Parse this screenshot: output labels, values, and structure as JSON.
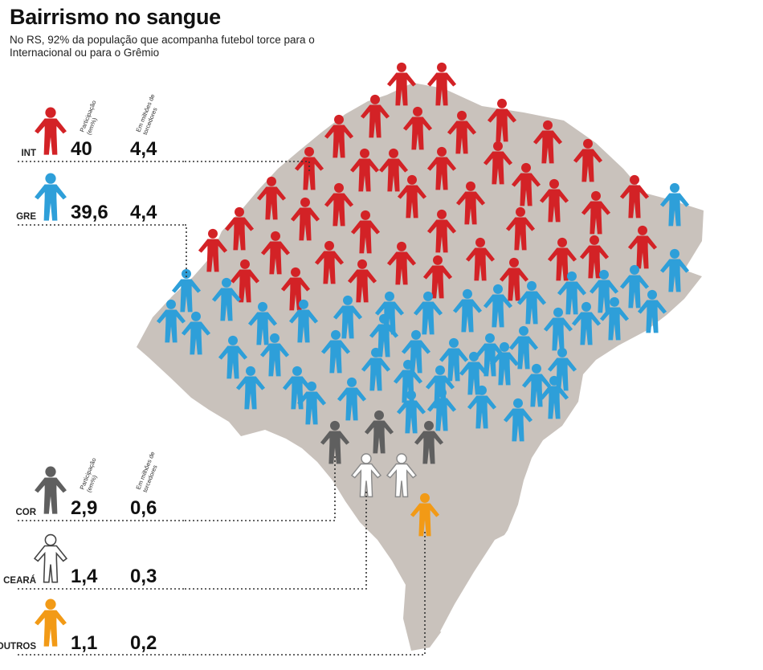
{
  "title": "Bairrismo no sangue",
  "subtitle": "No RS, 92% da população que acompanha futebol torce para o Internacional ou para o Grêmio",
  "column_headers": {
    "share": [
      "Participação",
      "(em%)"
    ],
    "fans": [
      "Em milhões de",
      "torcedores"
    ]
  },
  "colors": {
    "INT": "#d32226",
    "GRE": "#2e9fd9",
    "COR": "#5f5f5f",
    "CEARÁ": "#ffffff",
    "OUTROS": "#f29a16",
    "map": "#c9c2bc"
  },
  "chart_data": {
    "type": "table",
    "columns": [
      "Participação (em%)",
      "Em milhões de torcedores"
    ],
    "rows": [
      {
        "team": "INT",
        "share_label": "40",
        "share": 40,
        "fans_label": "4,4",
        "fans_millions": 4.4,
        "icon_color": "#d32226",
        "figure_count": 56
      },
      {
        "team": "GRE",
        "share_label": "39,6",
        "share": 39.6,
        "fans_label": "4,4",
        "fans_millions": 4.4,
        "icon_color": "#2e9fd9",
        "figure_count": 56
      },
      {
        "team": "COR",
        "share_label": "2,9",
        "share": 2.9,
        "fans_label": "0,6",
        "fans_millions": 0.6,
        "icon_color": "#5f5f5f",
        "figure_count": 3
      },
      {
        "team": "CEARÁ",
        "share_label": "1,4",
        "share": 1.4,
        "fans_label": "0,3",
        "fans_millions": 0.3,
        "icon_color": "#ffffff",
        "figure_count": 2
      },
      {
        "team": "OUTROS",
        "share_label": "1,1",
        "share": 1.1,
        "fans_label": "0,2",
        "fans_millions": 0.2,
        "icon_color": "#f29a16",
        "figure_count": 1
      }
    ]
  }
}
